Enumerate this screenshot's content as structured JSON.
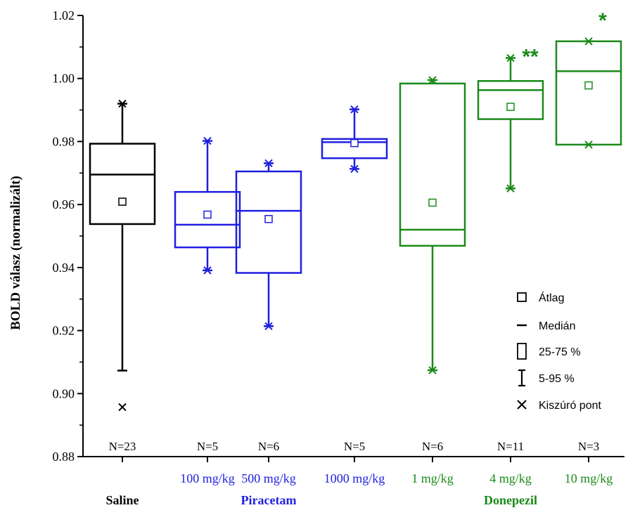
{
  "chart_data": {
    "type": "box",
    "ylabel": "BOLD válasz (normalizált)",
    "ylim": [
      0.88,
      1.02
    ],
    "y_ticks": [
      "0.88",
      "0.90",
      "0.92",
      "0.94",
      "0.96",
      "0.98",
      "1.00",
      "1.02"
    ],
    "y_tick_values": [
      0.88,
      0.9,
      0.92,
      0.94,
      0.96,
      0.98,
      1.0,
      1.02
    ],
    "groups": [
      {
        "label": "Saline",
        "color": "#000000"
      },
      {
        "label": "Piracetam",
        "color": "#1f1fe0"
      },
      {
        "label": "Donepezil",
        "color": "#1a8a1a"
      }
    ],
    "boxes": [
      {
        "category": "",
        "group": "Saline",
        "n_label": "N=23",
        "color": "#000000",
        "q1": 0.9538,
        "median": 0.9695,
        "q3": 0.9793,
        "mean": 0.9609,
        "whisker_low": 0.9073,
        "whisker_high": 0.992,
        "outliers": [
          0.992,
          0.8957
        ],
        "significance": ""
      },
      {
        "category": "100 mg/kg",
        "group": "Piracetam",
        "n_label": "N=5",
        "color": "#1f1fe0",
        "q1": 0.9464,
        "median": 0.9536,
        "q3": 0.964,
        "mean": 0.9568,
        "whisker_low": 0.9391,
        "whisker_high": 0.9802,
        "outliers": [
          0.9802,
          0.9391
        ],
        "significance": ""
      },
      {
        "category": "500 mg/kg",
        "group": "Piracetam",
        "n_label": "N=6",
        "color": "#1f1fe0",
        "q1": 0.9383,
        "median": 0.958,
        "q3": 0.9705,
        "mean": 0.9554,
        "whisker_low": 0.9214,
        "whisker_high": 0.9731,
        "outliers": [
          0.9731,
          0.9214
        ],
        "significance": ""
      },
      {
        "category": "1000 mg/kg",
        "group": "Piracetam",
        "n_label": "N=5",
        "color": "#1f1fe0",
        "q1": 0.9747,
        "median": 0.9798,
        "q3": 0.9808,
        "mean": 0.9795,
        "whisker_low": 0.9713,
        "whisker_high": 0.9902,
        "outliers": [
          0.9902,
          0.9713
        ],
        "significance": ""
      },
      {
        "category": "1 mg/kg",
        "group": "Donepezil",
        "n_label": "N=6",
        "color": "#1a8a1a",
        "q1": 0.9469,
        "median": 0.952,
        "q3": 0.9984,
        "mean": 0.9606,
        "whisker_low": 0.9074,
        "whisker_high": 0.9995,
        "outliers": [
          0.9995,
          0.9074
        ],
        "significance": ""
      },
      {
        "category": "4 mg/kg",
        "group": "Donepezil",
        "n_label": "N=11",
        "color": "#1a8a1a",
        "q1": 0.9871,
        "median": 0.9963,
        "q3": 0.9992,
        "mean": 0.991,
        "whisker_low": 0.9651,
        "whisker_high": 1.0065,
        "outliers": [
          1.0065,
          0.9651
        ],
        "significance": "**"
      },
      {
        "category": "10 mg/kg",
        "group": "Donepezil",
        "n_label": "N=3",
        "color": "#1a8a1a",
        "q1": 0.979,
        "median": 1.0023,
        "q3": 1.0118,
        "mean": 0.9978,
        "whisker_low": 0.979,
        "whisker_high": 1.0118,
        "outliers": [
          1.0118,
          0.979
        ],
        "significance": "*"
      }
    ],
    "legend": {
      "placement": "bottom-right",
      "entries": [
        "Átlag",
        "Medián",
        "25-75 %",
        "5-95 %",
        "Kiszúró pont"
      ]
    }
  }
}
